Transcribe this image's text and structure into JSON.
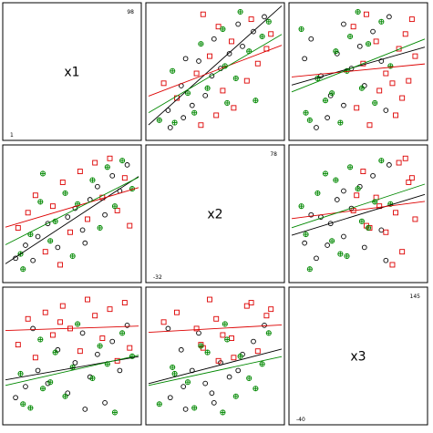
{
  "chart_data": {
    "type": "scatter",
    "subtype": "scatterplot-matrix",
    "variables": [
      {
        "name": "x1",
        "min_label": "1",
        "max_label": "98",
        "min": 1,
        "max": 98
      },
      {
        "name": "x2",
        "min_label": "-32",
        "max_label": "78",
        "min": -32,
        "max": 78
      },
      {
        "name": "x3",
        "min_label": "-40",
        "max_label": "145",
        "min": -40,
        "max": 145
      }
    ],
    "groups": [
      {
        "id": "g1",
        "marker": "circle",
        "color": "#000000"
      },
      {
        "id": "g2",
        "marker": "square",
        "color": "#dd0000"
      },
      {
        "id": "g3",
        "marker": "circled-plus",
        "color": "#008800"
      }
    ],
    "points": [
      {
        "g": 0,
        "x1": 4,
        "x2": -18,
        "x3": -12
      },
      {
        "g": 0,
        "x1": 12,
        "x2": -6,
        "x3": 5
      },
      {
        "g": 0,
        "x1": 22,
        "x2": 2,
        "x3": 30
      },
      {
        "g": 0,
        "x1": 30,
        "x2": 14,
        "x3": 10
      },
      {
        "g": 0,
        "x1": 38,
        "x2": -8,
        "x3": 62
      },
      {
        "g": 0,
        "x1": 46,
        "x2": 20,
        "x3": -5
      },
      {
        "g": 0,
        "x1": 52,
        "x2": 28,
        "x3": 42
      },
      {
        "g": 0,
        "x1": 58,
        "x2": 8,
        "x3": 88
      },
      {
        "g": 0,
        "x1": 64,
        "x2": 36,
        "x3": 20
      },
      {
        "g": 0,
        "x1": 70,
        "x2": 48,
        "x3": 55
      },
      {
        "g": 0,
        "x1": 76,
        "x2": 22,
        "x3": -20
      },
      {
        "g": 0,
        "x1": 82,
        "x2": 58,
        "x3": 75
      },
      {
        "g": 0,
        "x1": 88,
        "x2": 44,
        "x3": 30
      },
      {
        "g": 0,
        "x1": 94,
        "x2": 68,
        "x3": 100
      },
      {
        "g": 0,
        "x1": 18,
        "x2": -20,
        "x3": 95
      },
      {
        "g": 0,
        "x1": 60,
        "x2": -4,
        "x3": -30
      },
      {
        "g": 1,
        "x1": 6,
        "x2": 10,
        "x3": 70
      },
      {
        "g": 1,
        "x1": 14,
        "x2": 24,
        "x3": 110
      },
      {
        "g": 1,
        "x1": 20,
        "x2": 40,
        "x3": 50
      },
      {
        "g": 1,
        "x1": 28,
        "x2": -12,
        "x3": 120
      },
      {
        "g": 1,
        "x1": 34,
        "x2": 30,
        "x3": 85
      },
      {
        "g": 1,
        "x1": 42,
        "x2": 52,
        "x3": 130
      },
      {
        "g": 1,
        "x1": 48,
        "x2": 6,
        "x3": 95
      },
      {
        "g": 1,
        "x1": 56,
        "x2": 62,
        "x3": 60
      },
      {
        "g": 1,
        "x1": 62,
        "x2": 18,
        "x3": 140
      },
      {
        "g": 1,
        "x1": 68,
        "x2": 70,
        "x3": 115
      },
      {
        "g": 1,
        "x1": 74,
        "x2": 38,
        "x3": 80
      },
      {
        "g": 1,
        "x1": 80,
        "x2": 74,
        "x3": 125
      },
      {
        "g": 1,
        "x1": 86,
        "x2": 26,
        "x3": 45
      },
      {
        "g": 1,
        "x1": 92,
        "x2": 56,
        "x3": 135
      },
      {
        "g": 1,
        "x1": 40,
        "x2": -24,
        "x3": 105
      },
      {
        "g": 1,
        "x1": 96,
        "x2": 12,
        "x3": 65
      },
      {
        "g": 2,
        "x1": 8,
        "x2": -14,
        "x3": 25
      },
      {
        "g": 2,
        "x1": 16,
        "x2": 4,
        "x3": -28
      },
      {
        "g": 2,
        "x1": 24,
        "x2": 34,
        "x3": 78
      },
      {
        "g": 2,
        "x1": 32,
        "x2": -2,
        "x3": 12
      },
      {
        "g": 2,
        "x1": 36,
        "x2": 16,
        "x3": 58
      },
      {
        "g": 2,
        "x1": 44,
        "x2": 42,
        "x3": -10
      },
      {
        "g": 2,
        "x1": 50,
        "x2": -16,
        "x3": 35
      },
      {
        "g": 2,
        "x1": 54,
        "x2": 32,
        "x3": 102
      },
      {
        "g": 2,
        "x1": 66,
        "x2": 54,
        "x3": 18
      },
      {
        "g": 2,
        "x1": 72,
        "x2": 10,
        "x3": 68
      },
      {
        "g": 2,
        "x1": 78,
        "x2": 66,
        "x3": 40
      },
      {
        "g": 2,
        "x1": 84,
        "x2": 30,
        "x3": -35
      },
      {
        "g": 2,
        "x1": 90,
        "x2": 72,
        "x3": 88
      },
      {
        "g": 2,
        "x1": 26,
        "x2": 60,
        "x3": 2
      },
      {
        "g": 2,
        "x1": 98,
        "x2": 46,
        "x3": 52
      },
      {
        "g": 2,
        "x1": 10,
        "x2": -28,
        "x3": -22
      }
    ]
  }
}
